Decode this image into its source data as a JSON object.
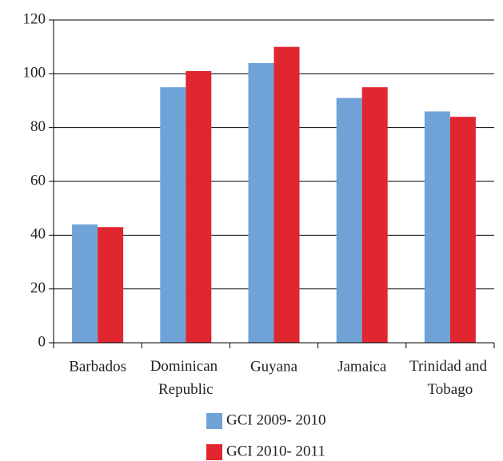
{
  "chart_data": {
    "type": "bar",
    "categories": [
      "Barbados",
      "Dominican Republic",
      "Guyana",
      "Jamaica",
      "Trinidad and Tobago"
    ],
    "series": [
      {
        "name": "GCI 2009- 2010",
        "color": "#6fa3d8",
        "values": [
          44,
          95,
          104,
          91,
          86
        ]
      },
      {
        "name": "GCI 2010- 2011",
        "color": "#e0262f",
        "values": [
          43,
          101,
          110,
          95,
          84
        ]
      }
    ],
    "ylim": [
      0,
      120
    ],
    "yticks": [
      0,
      20,
      40,
      60,
      80,
      100,
      120
    ],
    "grid": true,
    "legend": "bottom"
  }
}
